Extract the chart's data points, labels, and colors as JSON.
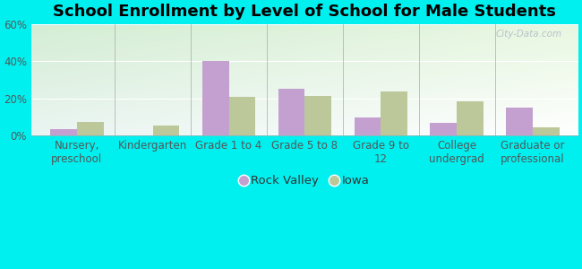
{
  "title": "School Enrollment by Level of School for Male Students",
  "categories": [
    "Nursery,\npreschool",
    "Kindergarten",
    "Grade 1 to 4",
    "Grade 5 to 8",
    "Grade 9 to\n12",
    "College\nundergrad",
    "Graduate or\nprofessional"
  ],
  "rock_valley": [
    3.5,
    0,
    40,
    25,
    10,
    7,
    15
  ],
  "iowa": [
    7.5,
    5.5,
    21,
    21.5,
    23.5,
    18.5,
    4.5
  ],
  "bar_color_rv": "#c4a0d0",
  "bar_color_iowa": "#bcc89a",
  "background_color": "#00f0f0",
  "ylim": [
    0,
    60
  ],
  "yticks": [
    0,
    20,
    40,
    60
  ],
  "ytick_labels": [
    "0%",
    "20%",
    "40%",
    "60%"
  ],
  "legend_labels": [
    "Rock Valley",
    "Iowa"
  ],
  "watermark": "City-Data.com",
  "title_fontsize": 13,
  "tick_fontsize": 8.5,
  "legend_fontsize": 9.5
}
